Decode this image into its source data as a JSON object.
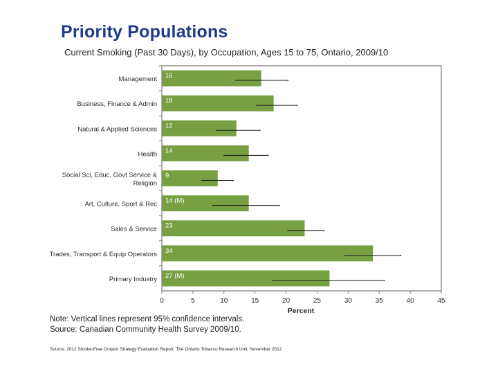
{
  "title": "Priority Populations",
  "subtitle": "Current Smoking (Past 30 Days), by Occupation, Ages 15 to 75, Ontario, 2009/10",
  "note_line1": "Note: Vertical lines represent 95% confidence intervals.",
  "note_line2": "Source: Canadian Community Health Survey 2009/10.",
  "source_footer": "Source: 2012 Smoke-Free Ontario Strategy Evaluation Report. The Ontario Tobacco Research Unit. November 2012",
  "chart_data": {
    "type": "bar",
    "orientation": "horizontal",
    "xlabel": "Percent",
    "ylabel": "",
    "xlim": [
      0,
      45
    ],
    "xticks": [
      0,
      5,
      10,
      15,
      20,
      25,
      30,
      35,
      40,
      45
    ],
    "grid": false,
    "bar_color": "#77a043",
    "categories": [
      {
        "lines": [
          "Management"
        ]
      },
      {
        "lines": [
          "Business, Finance & Admin"
        ]
      },
      {
        "lines": [
          "Natural & Applied Sciences"
        ]
      },
      {
        "lines": [
          "Health"
        ]
      },
      {
        "lines": [
          "Social Sci, Educ, Govt Service &",
          "Religion"
        ]
      },
      {
        "lines": [
          "Art, Culture, Sport & Rec"
        ]
      },
      {
        "lines": [
          "Sales & Service"
        ]
      },
      {
        "lines": [
          "Trades, Transport & Equip Operators"
        ]
      },
      {
        "lines": [
          "Primary Industry"
        ]
      }
    ],
    "values": [
      16,
      18,
      12,
      14,
      9,
      14,
      23,
      34,
      27
    ],
    "value_labels": [
      "16",
      "18",
      "12",
      "14",
      "9",
      "14 (M)",
      "23",
      "34",
      "27 (M)"
    ],
    "ci_low": [
      11.8,
      15.2,
      8.7,
      9.9,
      6.3,
      8.1,
      20.2,
      29.4,
      17.7
    ],
    "ci_high": [
      20.3,
      21.8,
      15.8,
      17.1,
      11.5,
      18.9,
      26.1,
      38.5,
      35.8
    ]
  }
}
